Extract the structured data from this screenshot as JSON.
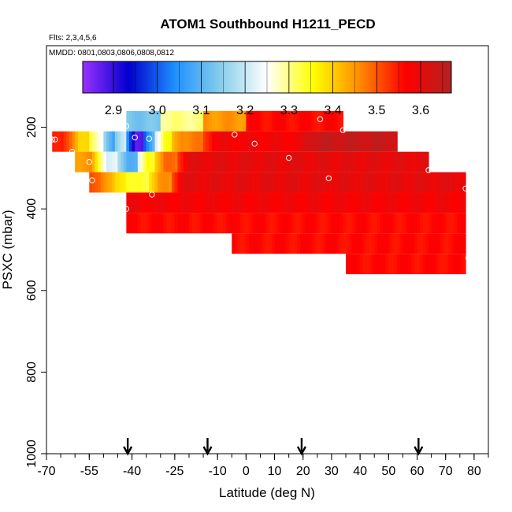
{
  "chart_data": {
    "type": "heatmap",
    "title": "ATOM1 Southbound H1211_PECD",
    "flights_note": "Flts: 2,3,4,5,6",
    "dates_note": "MMDD: 0801,0803,0806,0808,0812",
    "xlabel": "Latitude (deg N)",
    "ylabel": "PSXC (mbar)",
    "xlim": [
      -70,
      85
    ],
    "ylim": [
      1000,
      0
    ],
    "x_ticks": [
      -70,
      -55,
      -40,
      -25,
      -10,
      0,
      10,
      20,
      30,
      40,
      50,
      60,
      70,
      80
    ],
    "y_ticks": [
      200,
      400,
      600,
      800,
      1000
    ],
    "colorbar": {
      "range": [
        2.83,
        3.67
      ],
      "ticks": [
        2.9,
        3.0,
        3.1,
        3.2,
        3.3,
        3.4,
        3.5,
        3.6
      ],
      "stops": [
        "#9b30ff",
        "#0000cd",
        "#1e90ff",
        "#87ceeb",
        "#ffffff",
        "#ffff00",
        "#ff8c00",
        "#ff0000",
        "#b22222"
      ]
    },
    "bands": [
      {
        "p": 185,
        "segments": [
          [
            -42,
            0,
            3.13
          ],
          [
            -30,
            15,
            3.3
          ],
          [
            -15,
            25,
            3.45
          ],
          [
            0,
            34,
            3.56
          ]
        ]
      },
      {
        "p": 235,
        "segments": [
          [
            -68,
            -62,
            3.55
          ],
          [
            -62,
            -55,
            3.4
          ],
          [
            -55,
            -50,
            3.25
          ],
          [
            -50,
            -46,
            3.08
          ],
          [
            -46,
            -42,
            3.2
          ],
          [
            -42,
            -36,
            2.88
          ],
          [
            -36,
            -32,
            3.1
          ],
          [
            -32,
            -26,
            3.35
          ],
          [
            -26,
            -15,
            3.47
          ],
          [
            -15,
            20,
            3.58
          ],
          [
            20,
            53,
            3.64
          ]
        ]
      },
      {
        "p": 285,
        "segments": [
          [
            -60,
            -52,
            3.45
          ],
          [
            -52,
            -45,
            3.22
          ],
          [
            -45,
            -38,
            3.1
          ],
          [
            -38,
            -32,
            3.35
          ],
          [
            -32,
            -24,
            3.48
          ],
          [
            -24,
            64,
            3.6
          ]
        ]
      },
      {
        "p": 335,
        "segments": [
          [
            -55,
            -49,
            3.5
          ],
          [
            -49,
            -42,
            3.38
          ],
          [
            -42,
            -34,
            3.33
          ],
          [
            -34,
            -26,
            3.45
          ],
          [
            -26,
            77,
            3.6
          ]
        ]
      },
      {
        "p": 385,
        "segments": [
          [
            -42,
            77,
            3.58
          ]
        ]
      },
      {
        "p": 435,
        "segments": [
          [
            -42,
            77,
            3.56
          ]
        ]
      },
      {
        "p": 485,
        "segments": [
          [
            -5,
            77,
            3.56
          ]
        ]
      },
      {
        "p": 535,
        "segments": [
          [
            35,
            77,
            3.56
          ]
        ]
      }
    ],
    "points": [
      [
        -68,
        230
      ],
      [
        -67,
        230
      ],
      [
        -61,
        260
      ],
      [
        -55,
        285
      ],
      [
        -54,
        330
      ],
      [
        -42,
        400
      ],
      [
        -42,
        197
      ],
      [
        -39,
        225
      ],
      [
        -34,
        228
      ],
      [
        -33,
        365
      ],
      [
        -4,
        218
      ],
      [
        3,
        240
      ],
      [
        15,
        275
      ],
      [
        26,
        180
      ],
      [
        29,
        325
      ],
      [
        34,
        207
      ],
      [
        64,
        305
      ],
      [
        77,
        350
      ],
      [
        78,
        520
      ]
    ],
    "arrows": [
      -41.5,
      -13.5,
      19.5,
      60.5
    ]
  }
}
